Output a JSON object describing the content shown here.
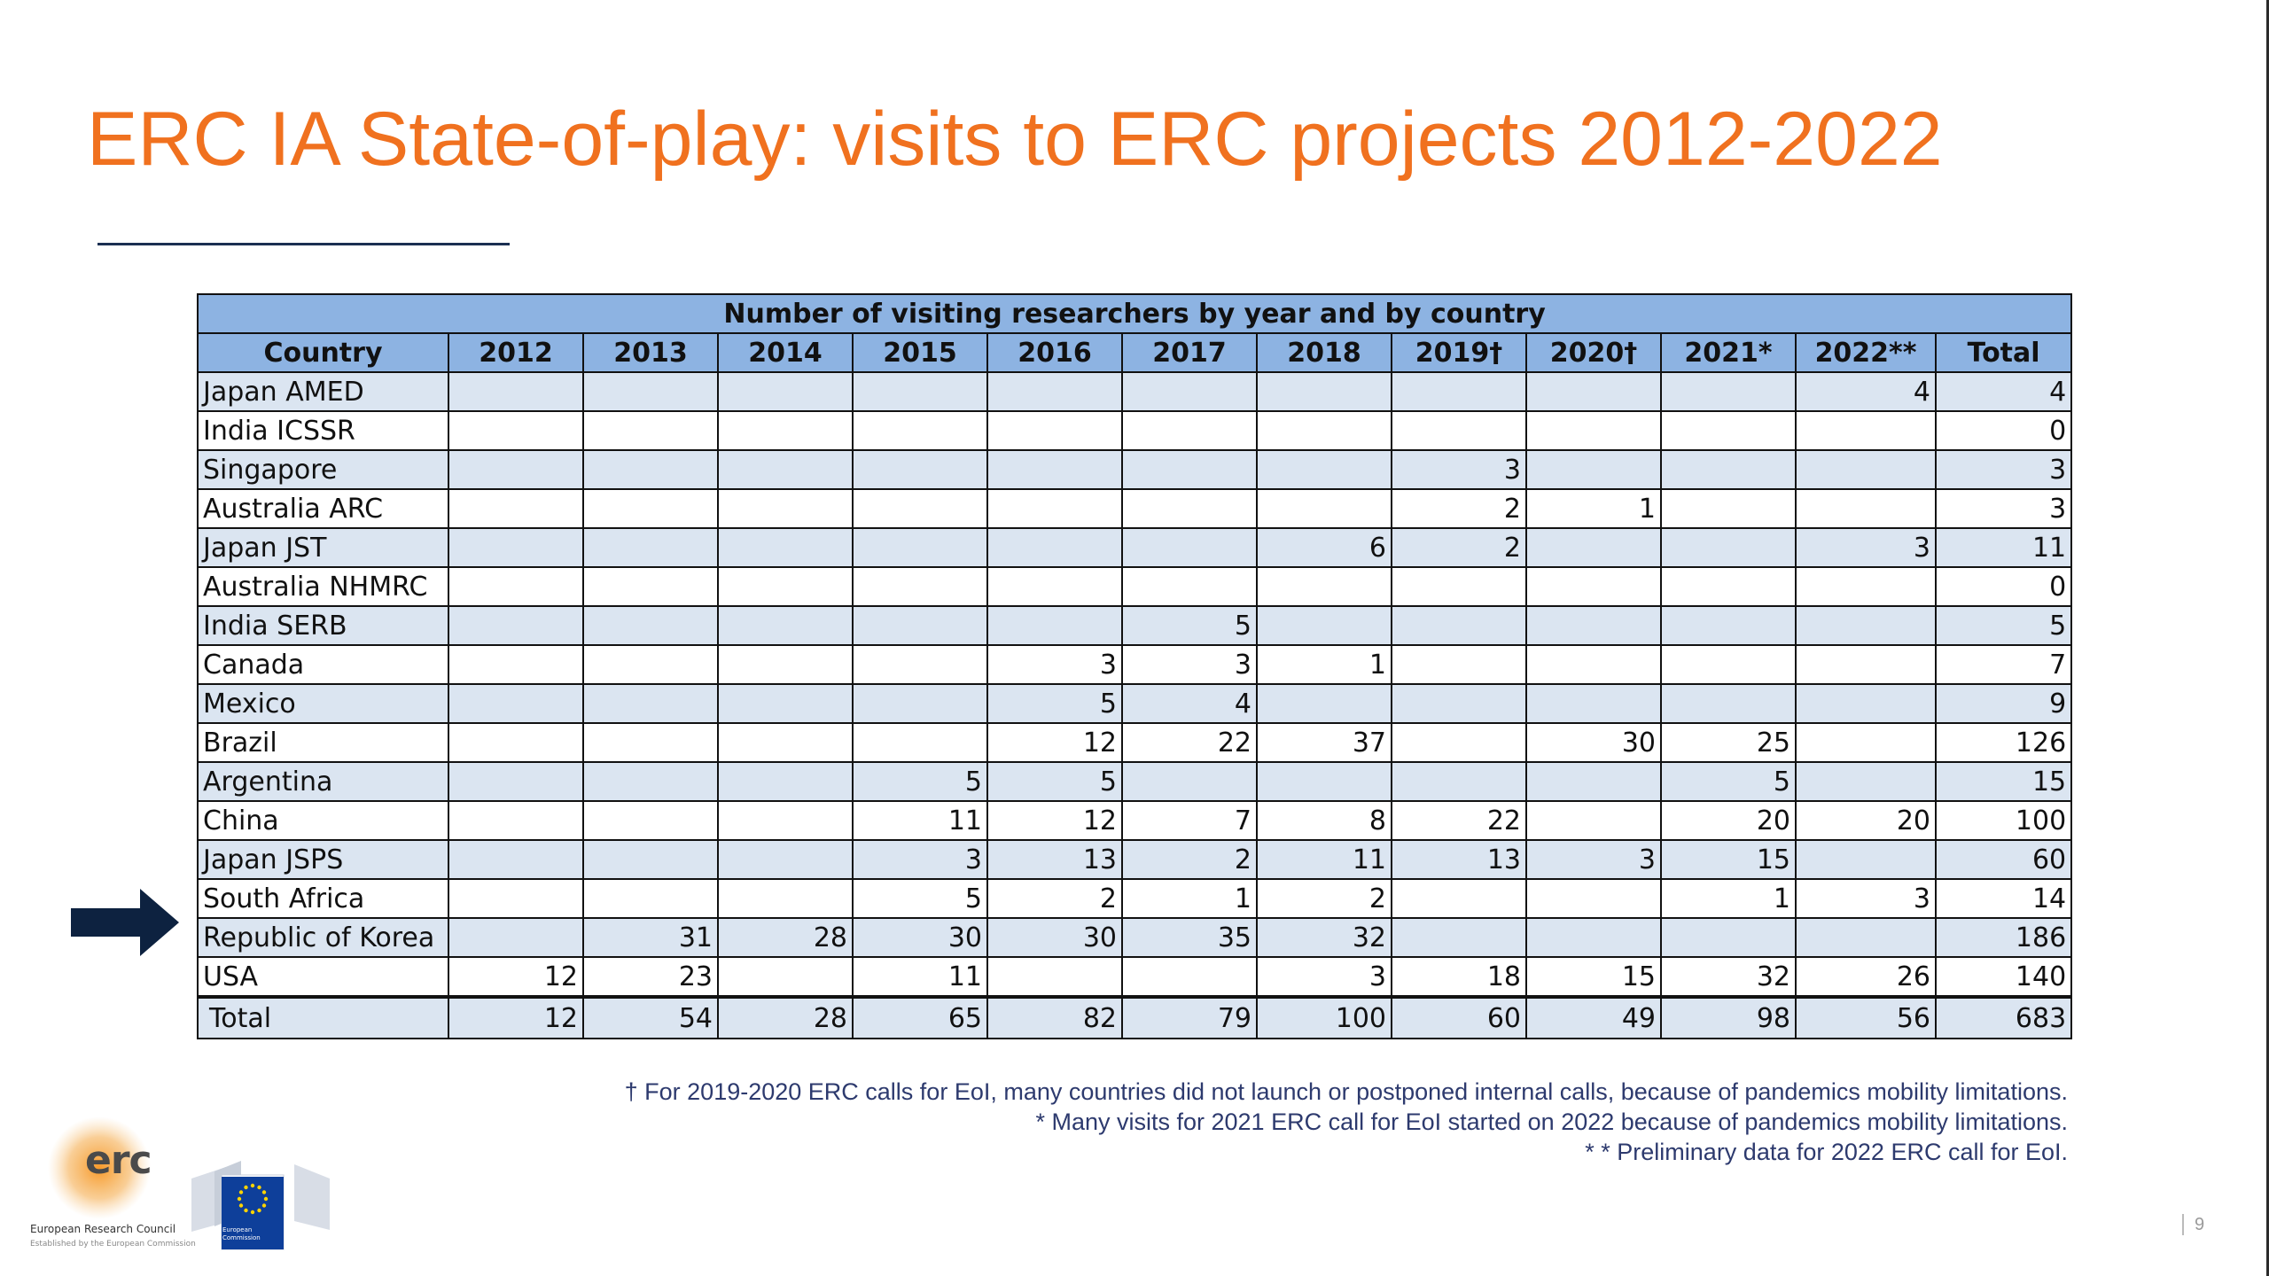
{
  "slide": {
    "title": "ERC IA State-of-play: visits to ERC projects 2012-2022",
    "page_number": "9"
  },
  "table": {
    "caption": "Number of visiting researchers by year and by country",
    "headers": [
      "Country",
      "2012",
      "2013",
      "2014",
      "2015",
      "2016",
      "2017",
      "2018",
      "2019†",
      "2020†",
      "2021*",
      "2022**",
      "Total"
    ],
    "rows": [
      [
        "Japan AMED",
        "",
        "",
        "",
        "",
        "",
        "",
        "",
        "",
        "",
        "",
        "4",
        "4"
      ],
      [
        "India ICSSR",
        "",
        "",
        "",
        "",
        "",
        "",
        "",
        "",
        "",
        "",
        "",
        "0"
      ],
      [
        "Singapore",
        "",
        "",
        "",
        "",
        "",
        "",
        "",
        "3",
        "",
        "",
        "",
        "3"
      ],
      [
        "Australia ARC",
        "",
        "",
        "",
        "",
        "",
        "",
        "",
        "2",
        "1",
        "",
        "",
        "3"
      ],
      [
        "Japan JST",
        "",
        "",
        "",
        "",
        "",
        "",
        "6",
        "2",
        "",
        "",
        "3",
        "11"
      ],
      [
        "Australia NHMRC",
        "",
        "",
        "",
        "",
        "",
        "",
        "",
        "",
        "",
        "",
        "",
        "0"
      ],
      [
        "India SERB",
        "",
        "",
        "",
        "",
        "",
        "5",
        "",
        "",
        "",
        "",
        "",
        "5"
      ],
      [
        "Canada",
        "",
        "",
        "",
        "",
        "3",
        "3",
        "1",
        "",
        "",
        "",
        "",
        "7"
      ],
      [
        "Mexico",
        "",
        "",
        "",
        "",
        "5",
        "4",
        "",
        "",
        "",
        "",
        "",
        "9"
      ],
      [
        "Brazil",
        "",
        "",
        "",
        "",
        "12",
        "22",
        "37",
        "",
        "30",
        "25",
        "",
        "126"
      ],
      [
        "Argentina",
        "",
        "",
        "",
        "5",
        "5",
        "",
        "",
        "",
        "",
        "5",
        "",
        "15"
      ],
      [
        "China",
        "",
        "",
        "",
        "11",
        "12",
        "7",
        "8",
        "22",
        "",
        "20",
        "20",
        "100"
      ],
      [
        "Japan JSPS",
        "",
        "",
        "",
        "3",
        "13",
        "2",
        "11",
        "13",
        "3",
        "15",
        "",
        "60"
      ],
      [
        "South Africa",
        "",
        "",
        "",
        "5",
        "2",
        "1",
        "2",
        "",
        "",
        "1",
        "3",
        "14"
      ],
      [
        "Republic of Korea",
        "",
        "31",
        "28",
        "30",
        "30",
        "35",
        "32",
        "",
        "",
        "",
        "",
        "186"
      ],
      [
        "USA",
        "12",
        "23",
        "",
        "11",
        "",
        "",
        "3",
        "18",
        "15",
        "32",
        "26",
        "140"
      ]
    ],
    "total_row": [
      "Total",
      "12",
      "54",
      "28",
      "65",
      "82",
      "79",
      "100",
      "60",
      "49",
      "98",
      "56",
      "683"
    ]
  },
  "notes": [
    "† For 2019-2020 ERC calls for EoI, many countries did not launch or postponed internal calls, because of pandemics mobility limitations.",
    "* Many visits for 2021 ERC call for EoI started on 2022 because of pandemics mobility limitations.",
    "* * Preliminary data for 2022 ERC call for EoI."
  ],
  "highlight": {
    "row_country": "South Africa",
    "icon": "arrow-right-icon",
    "color": "#0d2240"
  },
  "logos": {
    "erc_text": "erc",
    "erc_caption": "European Research Council",
    "erc_subcaption": "Established by the European Commission",
    "ec_caption": "European Commission"
  },
  "colors": {
    "title": "#f0711f",
    "header_fill": "#8db3e2",
    "band_fill": "#dbe5f1",
    "notes_text": "#2d3a6e"
  }
}
